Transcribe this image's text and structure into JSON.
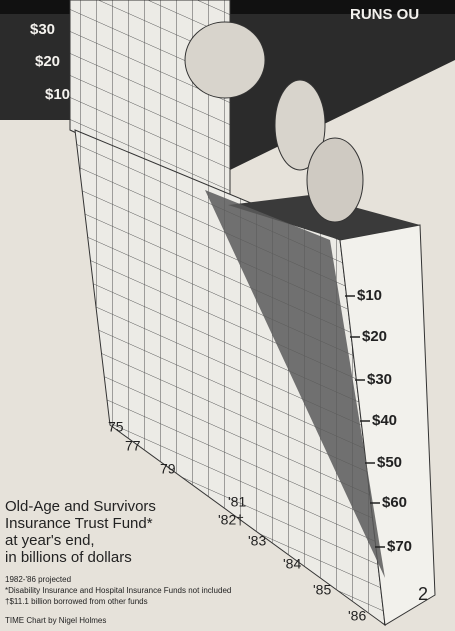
{
  "headline": "RUNS OU",
  "left_scale": [
    "$30",
    "$20",
    "$10"
  ],
  "right_scale": [
    "$10",
    "$20",
    "$30",
    "$40",
    "$50",
    "$60",
    "$70"
  ],
  "years": [
    "75",
    "77",
    "79",
    "'81",
    "'82†",
    "'83",
    "'84",
    "'85",
    "'86"
  ],
  "caption": [
    "Old-Age and Survivors",
    "Insurance Trust Fund*",
    "at year's end,",
    "in billions of dollars"
  ],
  "footnotes": [
    "1982-'86 projected",
    "*Disability Insurance and Hospital Insurance Funds not included",
    "†$11.1 billion borrowed from other funds"
  ],
  "credit": "TIME Chart by Nigel Holmes",
  "page_number": "2"
}
